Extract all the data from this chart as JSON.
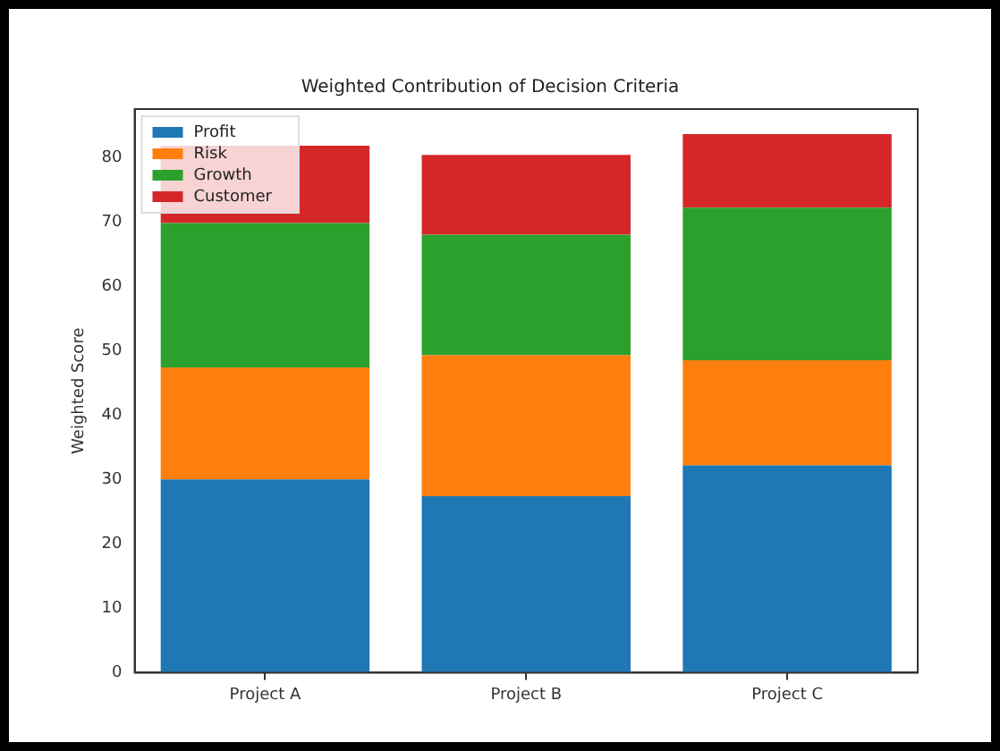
{
  "chart_data": {
    "type": "bar",
    "title": "Weighted Contribution of Decision Criteria",
    "ylabel": "Weighted Score",
    "categories": [
      "Project A",
      "Project B",
      "Project C"
    ],
    "stacked": true,
    "series": [
      {
        "name": "Profit",
        "color": "#1f77b4",
        "values": [
          30.0,
          27.4,
          32.2
        ]
      },
      {
        "name": "Risk",
        "color": "#ff7f0e",
        "values": [
          17.4,
          21.9,
          16.3
        ]
      },
      {
        "name": "Growth",
        "color": "#2ca02c",
        "values": [
          22.4,
          18.7,
          23.7
        ]
      },
      {
        "name": "Customer",
        "color": "#d62728",
        "values": [
          12.0,
          12.4,
          11.4
        ]
      }
    ],
    "ylim": [
      0,
      87.5
    ],
    "yticks": [
      0,
      10,
      20,
      30,
      40,
      50,
      60,
      70,
      80
    ],
    "grid": false,
    "legend": "top left"
  }
}
